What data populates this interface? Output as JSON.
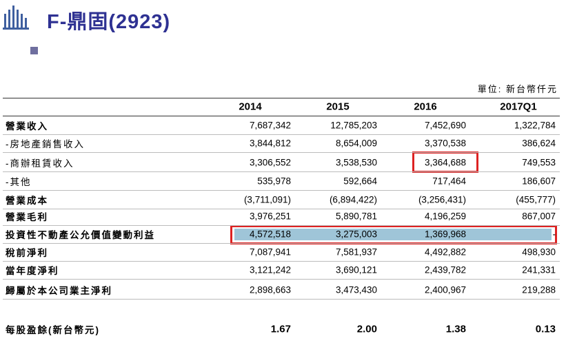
{
  "header": {
    "title": "F-鼎固(2923)",
    "unit": "單位: 新台幣仟元"
  },
  "table": {
    "columns": [
      "2014",
      "2015",
      "2016",
      "2017Q1"
    ],
    "rows": [
      [
        "營業收入",
        "7,687,342",
        "12,785,203",
        "7,452,690",
        "1,322,784"
      ],
      [
        "-房地產銷售收入",
        "3,844,812",
        "8,654,009",
        "3,370,538",
        "386,624"
      ],
      [
        "-商辦租賃收入",
        "3,306,552",
        "3,538,530",
        "3,364,688",
        "749,553"
      ],
      [
        "-其他",
        "535,978",
        "592,664",
        "717,464",
        "186,607"
      ],
      [
        "營業成本",
        "(3,711,091)",
        "(6,894,422)",
        "(3,256,431)",
        "(455,777)"
      ],
      [
        "營業毛利",
        "3,976,251",
        "5,890,781",
        "4,196,259",
        "867,007"
      ],
      [
        "投資性不動產公允價值變動利益",
        "4,572,518",
        "3,275,003",
        "1,369,968",
        "-"
      ],
      [
        "稅前淨利",
        "7,087,941",
        "7,581,937",
        "4,492,882",
        "498,930"
      ],
      [
        "當年度淨利",
        "3,121,242",
        "3,690,121",
        "2,439,782",
        "241,331"
      ],
      [
        "歸屬於本公司業主淨利",
        "2,898,663",
        "3,473,430",
        "2,400,967",
        "219,288"
      ]
    ],
    "eps": [
      "每股盈餘(新台幣元)",
      "1.67",
      "2.00",
      "1.38",
      "0.13"
    ]
  }
}
